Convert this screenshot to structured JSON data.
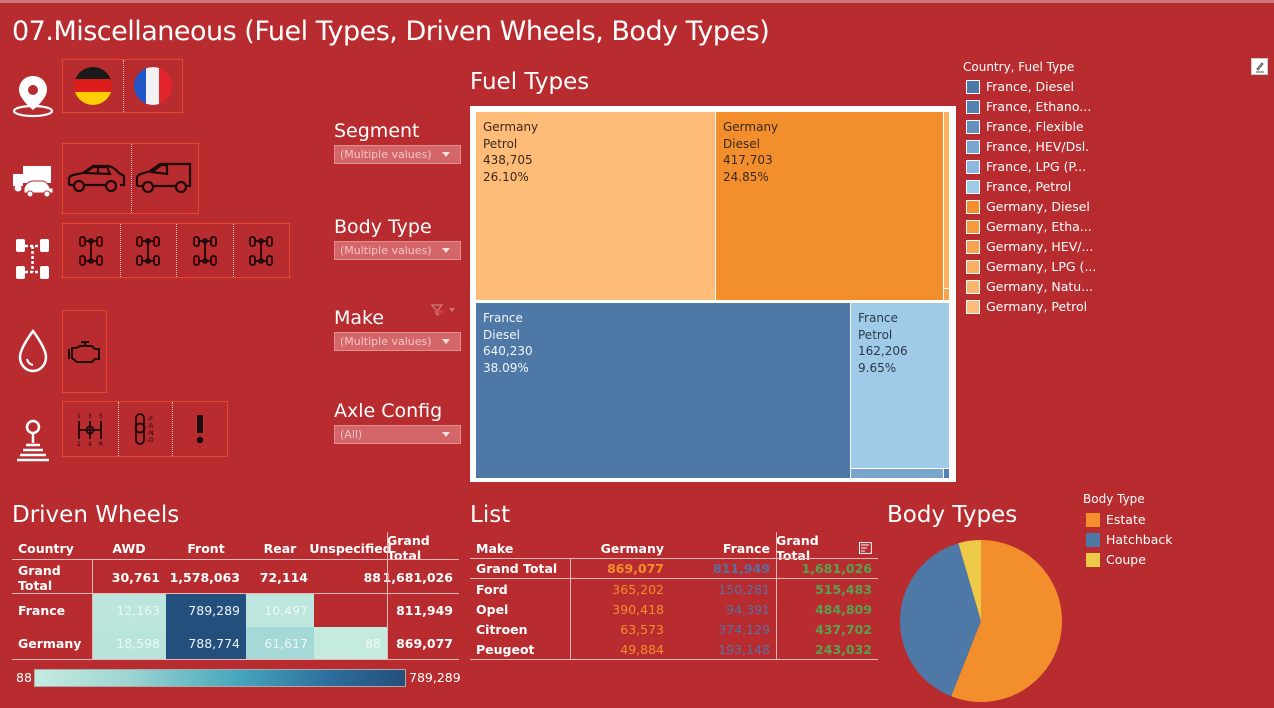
{
  "title": "07.Miscellaneous (Fuel Types, Driven Wheels, Body Types)",
  "icon_rows": [
    {
      "row_icon": "location-pin-icon",
      "buttons": [
        "germany-flag-icon",
        "france-flag-icon"
      ]
    },
    {
      "row_icon": "truck-car-icon",
      "buttons": [
        "sedan-icon",
        "van-icon"
      ]
    },
    {
      "row_icon": "axle-icon",
      "buttons": [
        "axle-awd-icon",
        "axle-front-icon",
        "axle-rear-icon",
        "axle-unspecified-icon"
      ]
    },
    {
      "row_icon": "fuel-drop-icon",
      "buttons": [
        "engine-icon"
      ]
    },
    {
      "row_icon": "gear-shift-icon",
      "buttons": [
        "manual-gearbox-icon",
        "automatic-gearbox-icon",
        "exclamation-icon"
      ]
    }
  ],
  "filters": {
    "segment": {
      "label": "Segment",
      "value": "(Multiple values)"
    },
    "body_type": {
      "label": "Body Type",
      "value": "(Multiple values)"
    },
    "make": {
      "label": "Make",
      "value": "(Multiple values)"
    },
    "axle_config": {
      "label": "Axle Config",
      "value": "(All)"
    }
  },
  "sections": {
    "fuel_types": "Fuel Types",
    "driven_wheels": "Driven Wheels",
    "list": "List",
    "body_types": "Body Types"
  },
  "chart_data": [
    {
      "type": "treemap",
      "title": "Fuel Types",
      "legend_title": "Country, Fuel Type",
      "legend_placement": "right",
      "cells": [
        {
          "country": "Germany",
          "fuel": "Petrol",
          "value": 438705,
          "value_label": "438,705",
          "pct_label": "26.10%",
          "color": "#ffbc79"
        },
        {
          "country": "Germany",
          "fuel": "Diesel",
          "value": 417703,
          "value_label": "417,703",
          "pct_label": "24.85%",
          "color": "#f28e2b"
        },
        {
          "country": "France",
          "fuel": "Diesel",
          "value": 640230,
          "value_label": "640,230",
          "pct_label": "38.09%",
          "color": "#4e79a7"
        },
        {
          "country": "France",
          "fuel": "Petrol",
          "value": 162206,
          "value_label": "162,206",
          "pct_label": "9.65%",
          "color": "#a0cbe8"
        }
      ],
      "legend": [
        {
          "label": "France, Diesel",
          "color": "#4e79a7"
        },
        {
          "label": "France, Ethano...",
          "color": "#5582b0"
        },
        {
          "label": "France, Flexible",
          "color": "#6590bb"
        },
        {
          "label": "France, HEV/Dsl.",
          "color": "#7aa5cc"
        },
        {
          "label": "France, LPG (P...",
          "color": "#8fb8dc"
        },
        {
          "label": "France, Petrol",
          "color": "#a0cbe8"
        },
        {
          "label": "Germany, Diesel",
          "color": "#f28e2b"
        },
        {
          "label": "Germany, Etha...",
          "color": "#f59a3c"
        },
        {
          "label": "Germany, HEV/...",
          "color": "#f8a44f"
        },
        {
          "label": "Germany, LPG (...",
          "color": "#fbaf60"
        },
        {
          "label": "Germany, Natu...",
          "color": "#fdb66d"
        },
        {
          "label": "Germany, Petrol",
          "color": "#ffbc79"
        }
      ]
    },
    {
      "type": "heatmap",
      "title": "Driven Wheels",
      "columns": [
        "Country",
        "AWD",
        "Front",
        "Rear",
        "Unspecified",
        "Grand Total"
      ],
      "grand_total": [
        "Grand Total",
        "30,761",
        "1,578,063",
        "72,114",
        "88",
        "1,681,026"
      ],
      "rows": [
        {
          "label": "France",
          "values": [
            12163,
            789289,
            10497,
            null
          ],
          "labels": [
            "12,163",
            "789,289",
            "10,497",
            ""
          ],
          "total": "811,949"
        },
        {
          "label": "Germany",
          "values": [
            18598,
            788774,
            61617,
            88
          ],
          "labels": [
            "18,598",
            "788,774",
            "61,617",
            "88"
          ],
          "total": "869,077"
        }
      ],
      "color_range": {
        "min": 88,
        "max": 789289,
        "min_label": "88",
        "max_label": "789,289"
      }
    },
    {
      "type": "table",
      "title": "List",
      "columns": [
        "Make",
        "Germany",
        "France",
        "Grand Total"
      ],
      "grand_total": [
        "Grand Total",
        "869,077",
        "811,949",
        "1,681,026"
      ],
      "rows": [
        [
          "Ford",
          "365,202",
          "150,281",
          "515,483"
        ],
        [
          "Opel",
          "390,418",
          "94,391",
          "484,809"
        ],
        [
          "Citroen",
          "63,573",
          "374,129",
          "437,702"
        ],
        [
          "Peugeot",
          "49,884",
          "193,148",
          "243,032"
        ]
      ],
      "colors": {
        "germany": "#f28e2b",
        "france": "#5a6fa0",
        "total": "#59a14f"
      }
    },
    {
      "type": "pie",
      "title": "Body Types",
      "legend_title": "Body Type",
      "legend_placement": "right",
      "slices": [
        {
          "label": "Estate",
          "share": 0.56,
          "color": "#f28e2b"
        },
        {
          "label": "Hatchback",
          "share": 0.395,
          "color": "#4e79a7"
        },
        {
          "label": "Coupe",
          "share": 0.045,
          "color": "#edc948"
        }
      ]
    }
  ]
}
